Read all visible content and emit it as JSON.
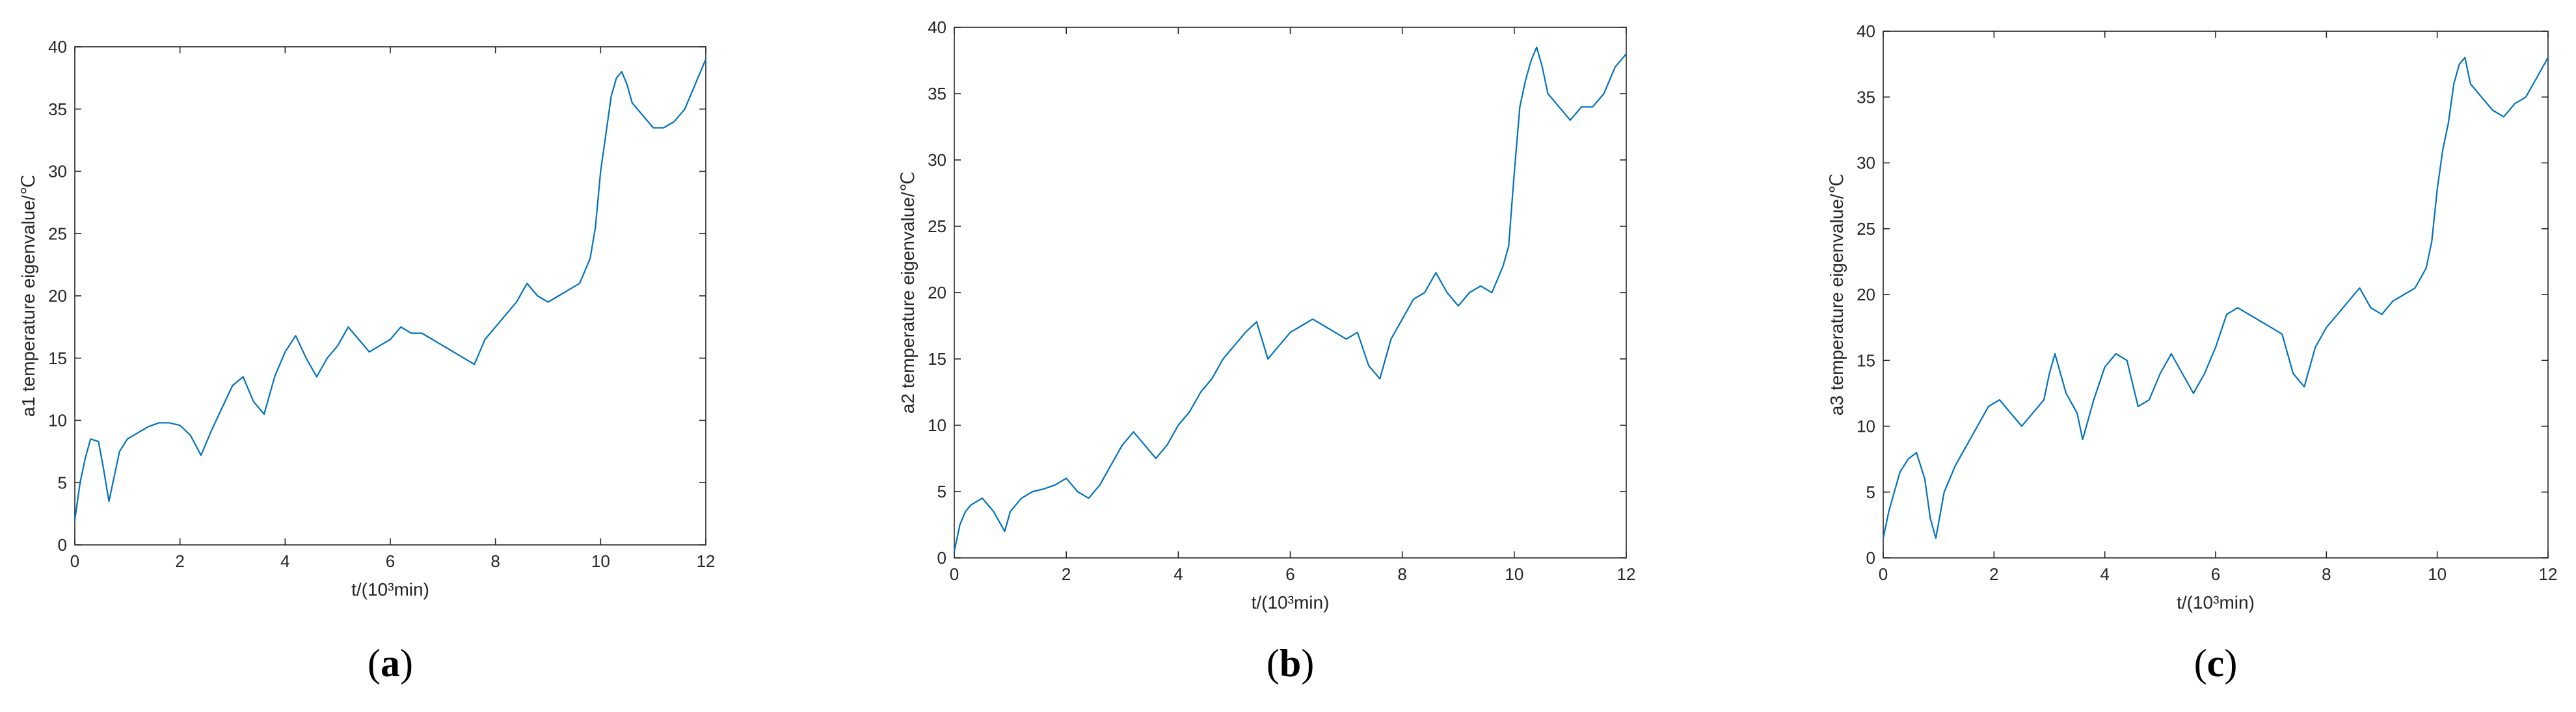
{
  "chart_data": [
    {
      "type": "line",
      "panel_label": "a",
      "title": "",
      "xlabel": "t/(10³min)",
      "ylabel": "a1 temperature eigenvalue/℃",
      "xlim": [
        0,
        12
      ],
      "ylim": [
        0,
        40
      ],
      "xticks": [
        0,
        2,
        4,
        6,
        8,
        10,
        12
      ],
      "yticks": [
        0,
        5,
        10,
        15,
        20,
        25,
        30,
        35,
        40
      ],
      "grid": false,
      "color": "#0072BD",
      "series": [
        {
          "x": [
            0,
            0.1,
            0.2,
            0.3,
            0.45,
            0.55,
            0.65,
            0.75,
            0.85,
            1.0,
            1.2,
            1.4,
            1.6,
            1.8,
            2.0,
            2.2,
            2.4,
            2.6,
            2.8,
            3.0,
            3.2,
            3.4,
            3.6,
            3.8,
            4.0,
            4.2,
            4.4,
            4.6,
            4.8,
            5.0,
            5.2,
            5.4,
            5.6,
            5.8,
            6.0,
            6.2,
            6.4,
            6.6,
            6.8,
            7.0,
            7.2,
            7.4,
            7.6,
            7.8,
            8.0,
            8.2,
            8.4,
            8.6,
            8.8,
            9.0,
            9.2,
            9.4,
            9.6,
            9.8,
            9.9,
            10.0,
            10.1,
            10.2,
            10.3,
            10.4,
            10.5,
            10.6,
            10.8,
            11.0,
            11.2,
            11.4,
            11.6,
            11.8,
            12.0
          ],
          "y": [
            2,
            5,
            7,
            8.5,
            8.3,
            6,
            3.5,
            5.5,
            7.5,
            8.5,
            9,
            9.5,
            9.8,
            9.8,
            9.6,
            8.8,
            7.2,
            9.2,
            11,
            12.8,
            13.5,
            11.5,
            10.5,
            13.5,
            15.5,
            16.8,
            15,
            13.5,
            15,
            16,
            17.5,
            16.5,
            15.5,
            16,
            16.5,
            17.5,
            17,
            17,
            16.5,
            16,
            15.5,
            15,
            14.5,
            16.5,
            17.5,
            18.5,
            19.5,
            21,
            20,
            19.5,
            20,
            20.5,
            21,
            23,
            25.5,
            30,
            33,
            36,
            37.5,
            38,
            37,
            35.5,
            34.5,
            33.5,
            33.5,
            34,
            35,
            37,
            39
          ]
        }
      ]
    },
    {
      "type": "line",
      "panel_label": "b",
      "title": "",
      "xlabel": "t/(10³min)",
      "ylabel": "a2 temperature eigenvalue/℃",
      "xlim": [
        0,
        12
      ],
      "ylim": [
        0,
        40
      ],
      "xticks": [
        0,
        2,
        4,
        6,
        8,
        10,
        12
      ],
      "yticks": [
        0,
        5,
        10,
        15,
        20,
        25,
        30,
        35,
        40
      ],
      "grid": false,
      "color": "#0072BD",
      "series": [
        {
          "x": [
            0,
            0.1,
            0.2,
            0.3,
            0.5,
            0.7,
            0.9,
            1.0,
            1.2,
            1.4,
            1.6,
            1.8,
            2.0,
            2.2,
            2.4,
            2.6,
            2.8,
            3.0,
            3.2,
            3.4,
            3.6,
            3.8,
            4.0,
            4.2,
            4.4,
            4.6,
            4.8,
            5.0,
            5.2,
            5.4,
            5.6,
            5.8,
            6.0,
            6.2,
            6.4,
            6.6,
            6.8,
            7.0,
            7.2,
            7.4,
            7.6,
            7.8,
            8.0,
            8.2,
            8.4,
            8.6,
            8.8,
            9.0,
            9.2,
            9.4,
            9.6,
            9.8,
            9.9,
            10.0,
            10.1,
            10.2,
            10.3,
            10.4,
            10.5,
            10.6,
            10.8,
            11.0,
            11.2,
            11.4,
            11.6,
            11.8,
            12.0
          ],
          "y": [
            0.5,
            2.5,
            3.5,
            4,
            4.5,
            3.5,
            2,
            3.5,
            4.5,
            5,
            5.2,
            5.5,
            6,
            5,
            4.5,
            5.5,
            7,
            8.5,
            9.5,
            8.5,
            7.5,
            8.5,
            10,
            11,
            12.5,
            13.5,
            15,
            16,
            17,
            17.8,
            15,
            16,
            17,
            17.5,
            18,
            17.5,
            17,
            16.5,
            17,
            14.5,
            13.5,
            16.5,
            18,
            19.5,
            20,
            21.5,
            20,
            19,
            20,
            20.5,
            20,
            22,
            23.5,
            29,
            34,
            36,
            37.5,
            38.5,
            37,
            35,
            34,
            33,
            34,
            34,
            35,
            37,
            38
          ]
        }
      ]
    },
    {
      "type": "line",
      "panel_label": "c",
      "title": "",
      "xlabel": "t/(10³min)",
      "ylabel": "a3 temperature eigenvalue/℃",
      "xlim": [
        0,
        12
      ],
      "ylim": [
        0,
        40
      ],
      "xticks": [
        0,
        2,
        4,
        6,
        8,
        10,
        12
      ],
      "yticks": [
        0,
        5,
        10,
        15,
        20,
        25,
        30,
        35,
        40
      ],
      "grid": false,
      "color": "#0072BD",
      "series": [
        {
          "x": [
            0,
            0.1,
            0.2,
            0.3,
            0.45,
            0.6,
            0.75,
            0.85,
            0.95,
            1.1,
            1.3,
            1.5,
            1.7,
            1.9,
            2.1,
            2.3,
            2.5,
            2.7,
            2.9,
            3.0,
            3.1,
            3.3,
            3.5,
            3.6,
            3.8,
            4.0,
            4.2,
            4.4,
            4.6,
            4.8,
            5.0,
            5.2,
            5.4,
            5.6,
            5.8,
            6.0,
            6.2,
            6.4,
            6.6,
            6.8,
            7.0,
            7.2,
            7.4,
            7.6,
            7.8,
            8.0,
            8.2,
            8.4,
            8.6,
            8.8,
            9.0,
            9.2,
            9.4,
            9.6,
            9.8,
            9.9,
            10.0,
            10.1,
            10.2,
            10.3,
            10.4,
            10.5,
            10.6,
            10.8,
            11.0,
            11.2,
            11.4,
            11.6,
            11.8,
            12.0
          ],
          "y": [
            1.5,
            3.5,
            5,
            6.5,
            7.5,
            8,
            6,
            3,
            1.5,
            5,
            7,
            8.5,
            10,
            11.5,
            12,
            11,
            10,
            11,
            12,
            14,
            15.5,
            12.5,
            11,
            9,
            12,
            14.5,
            15.5,
            15,
            11.5,
            12,
            14,
            15.5,
            14,
            12.5,
            14,
            16,
            18.5,
            19,
            18.5,
            18,
            17.5,
            17,
            14,
            13,
            16,
            17.5,
            18.5,
            19.5,
            20.5,
            19,
            18.5,
            19.5,
            20,
            20.5,
            22,
            24,
            28,
            31,
            33,
            36,
            37.5,
            38,
            36,
            35,
            34,
            33.5,
            34.5,
            35,
            36.5,
            38
          ]
        }
      ]
    }
  ]
}
